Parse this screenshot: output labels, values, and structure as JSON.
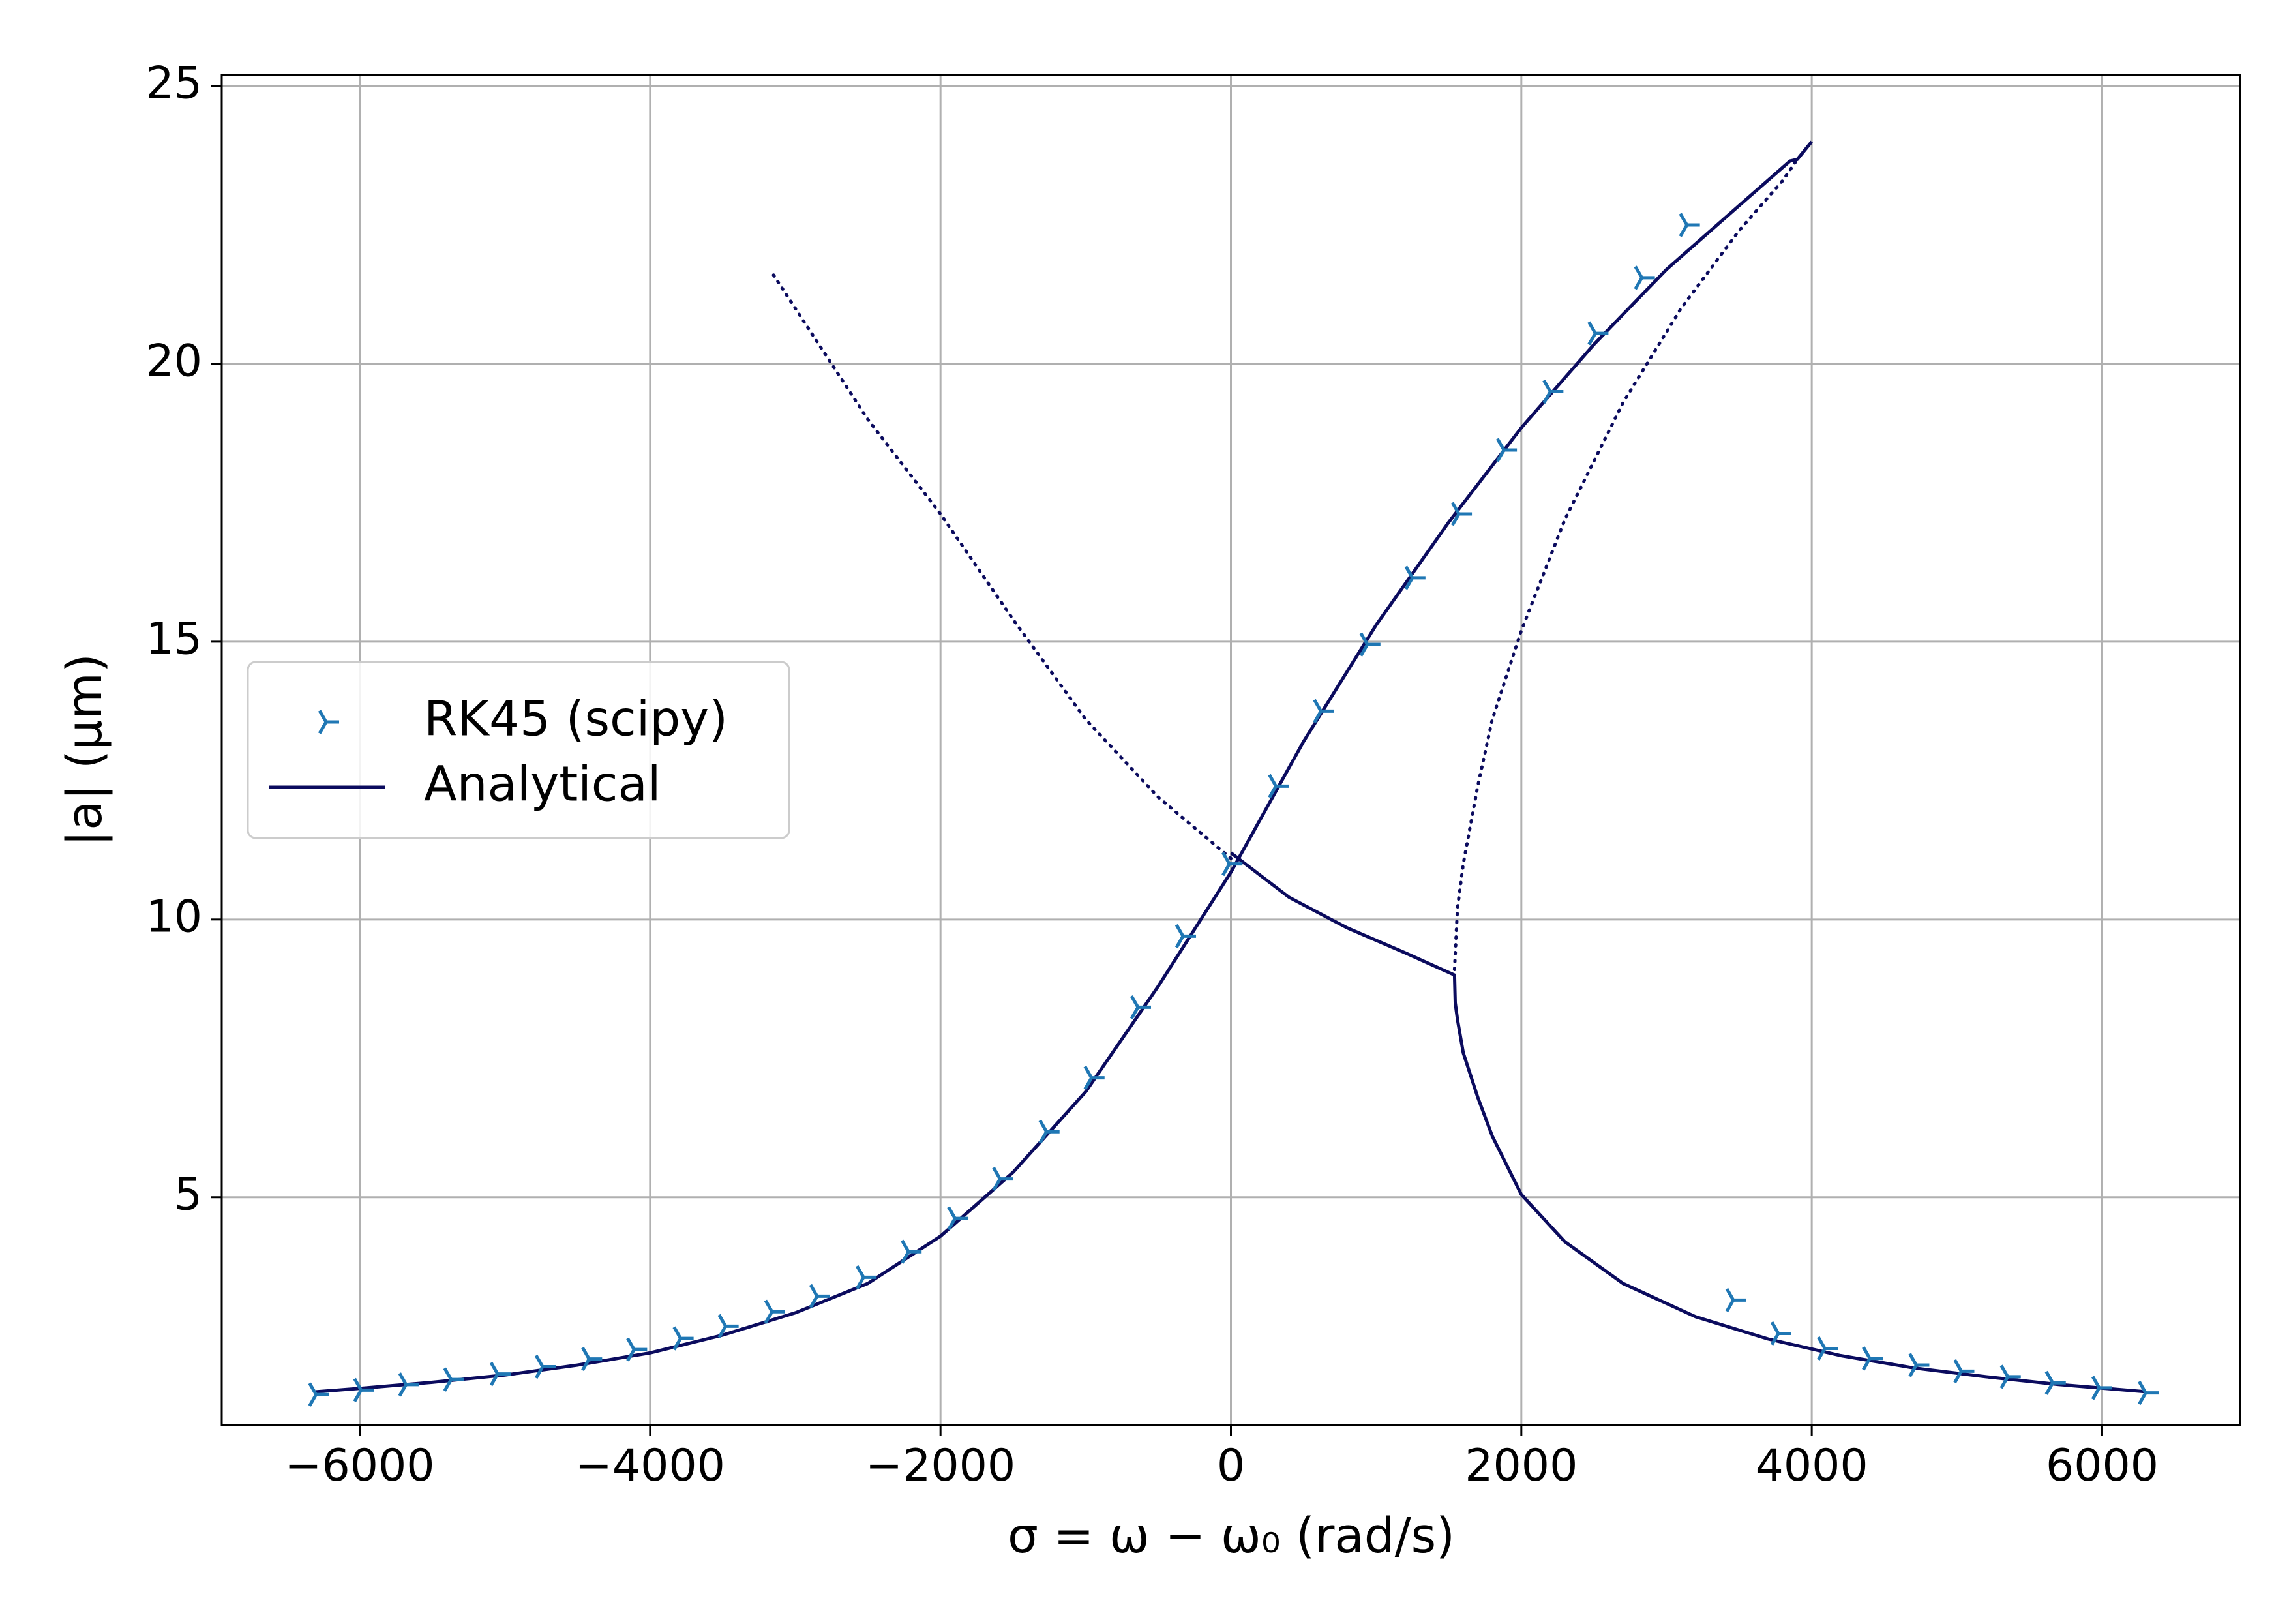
{
  "chart_data": {
    "type": "line",
    "xlabel": "σ = ω − ω₀ (rad/s)",
    "ylabel": "|a| (µm)",
    "xlim": [
      -6950,
      6950
    ],
    "ylim": [
      0.9,
      25.2
    ],
    "xticks": [
      -6000,
      -4000,
      -2000,
      0,
      2000,
      4000,
      6000
    ],
    "xtick_labels": [
      "−6000",
      "−4000",
      "−2000",
      "0",
      "2000",
      "4000",
      "6000"
    ],
    "yticks": [
      5,
      10,
      15,
      20,
      25
    ],
    "ytick_labels": [
      "5",
      "10",
      "15",
      "20",
      "25"
    ],
    "grid": true,
    "legend_position": "center-left",
    "colors": {
      "analytical": "#0b0b5e",
      "rk45": "#1f77b4",
      "grid": "#b0b0b0"
    },
    "series": [
      {
        "name": "RK45 (scipy)",
        "style": "markers",
        "marker": "tri_right",
        "points": [
          [
            -6300,
            1.45
          ],
          [
            -5990,
            1.53
          ],
          [
            -5680,
            1.63
          ],
          [
            -5370,
            1.72
          ],
          [
            -5050,
            1.82
          ],
          [
            -4740,
            1.95
          ],
          [
            -4420,
            2.09
          ],
          [
            -4110,
            2.26
          ],
          [
            -3790,
            2.46
          ],
          [
            -3480,
            2.68
          ],
          [
            -3160,
            2.94
          ],
          [
            -2850,
            3.22
          ],
          [
            -2530,
            3.56
          ],
          [
            -2220,
            4.02
          ],
          [
            -1900,
            4.62
          ],
          [
            -1590,
            5.33
          ],
          [
            -1270,
            6.18
          ],
          [
            -960,
            7.15
          ],
          [
            -640,
            8.42
          ],
          [
            -330,
            9.7
          ],
          [
            -10,
            11.0
          ],
          [
            310,
            12.4
          ],
          [
            620,
            13.75
          ],
          [
            940,
            14.95
          ],
          [
            1250,
            16.15
          ],
          [
            1570,
            17.3
          ],
          [
            1880,
            18.45
          ],
          [
            2200,
            19.5
          ],
          [
            2510,
            20.55
          ],
          [
            2830,
            21.55
          ],
          [
            3140,
            22.5
          ],
          [
            3460,
            3.15
          ],
          [
            3770,
            2.55
          ],
          [
            4090,
            2.28
          ],
          [
            4400,
            2.1
          ],
          [
            4720,
            1.98
          ],
          [
            5030,
            1.87
          ],
          [
            5350,
            1.77
          ],
          [
            5660,
            1.66
          ],
          [
            5980,
            1.57
          ],
          [
            6300,
            1.48
          ]
        ]
      },
      {
        "name": "Analytical",
        "style": "solid",
        "segments": [
          [
            [
              -6300,
              1.5
            ],
            [
              -6000,
              1.56
            ],
            [
              -5500,
              1.67
            ],
            [
              -5000,
              1.8
            ],
            [
              -4500,
              1.98
            ],
            [
              -4000,
              2.2
            ],
            [
              -3500,
              2.52
            ],
            [
              -3000,
              2.92
            ],
            [
              -2500,
              3.45
            ],
            [
              -2000,
              4.3
            ],
            [
              -1500,
              5.45
            ],
            [
              -1000,
              6.9
            ],
            [
              -500,
              8.8
            ],
            [
              0,
              10.85
            ],
            [
              500,
              13.2
            ],
            [
              1000,
              15.3
            ],
            [
              1500,
              17.15
            ],
            [
              2000,
              18.85
            ],
            [
              2500,
              20.35
            ],
            [
              3000,
              21.7
            ],
            [
              3500,
              22.85
            ],
            [
              3850,
              23.65
            ],
            [
              3900,
              23.68
            ],
            [
              4000,
              24.0
            ]
          ],
          [
            [
              0,
              11.2
            ],
            [
              400,
              10.4
            ],
            [
              800,
              9.85
            ],
            [
              1200,
              9.4
            ],
            [
              1540,
              9.0
            ],
            [
              1545,
              8.5
            ],
            [
              1560,
              8.2
            ],
            [
              1600,
              7.6
            ],
            [
              1700,
              6.8
            ],
            [
              1800,
              6.1
            ],
            [
              2000,
              5.05
            ],
            [
              2300,
              4.2
            ],
            [
              2700,
              3.45
            ],
            [
              3200,
              2.85
            ],
            [
              3700,
              2.45
            ],
            [
              4200,
              2.15
            ],
            [
              4700,
              1.93
            ],
            [
              5200,
              1.77
            ],
            [
              5700,
              1.63
            ],
            [
              6300,
              1.5
            ]
          ]
        ]
      },
      {
        "style": "dotted",
        "segments": [
          [
            [
              -3150,
              21.6
            ],
            [
              -2500,
              19.0
            ],
            [
              -2000,
              17.3
            ],
            [
              -1500,
              15.4
            ],
            [
              -1000,
              13.6
            ],
            [
              -500,
              12.2
            ],
            [
              0,
              11.1
            ]
          ],
          [
            [
              1540,
              9.1
            ],
            [
              1560,
              10.2
            ],
            [
              1600,
              11.0
            ],
            [
              1700,
              12.4
            ],
            [
              1800,
              13.6
            ],
            [
              2000,
              15.2
            ],
            [
              2300,
              17.2
            ],
            [
              2700,
              19.3
            ],
            [
              3100,
              21.0
            ],
            [
              3500,
              22.4
            ],
            [
              3800,
              23.3
            ],
            [
              3900,
              23.68
            ]
          ]
        ]
      }
    ],
    "legend": [
      {
        "label": "RK45 (scipy)"
      },
      {
        "label": "Analytical"
      }
    ]
  }
}
